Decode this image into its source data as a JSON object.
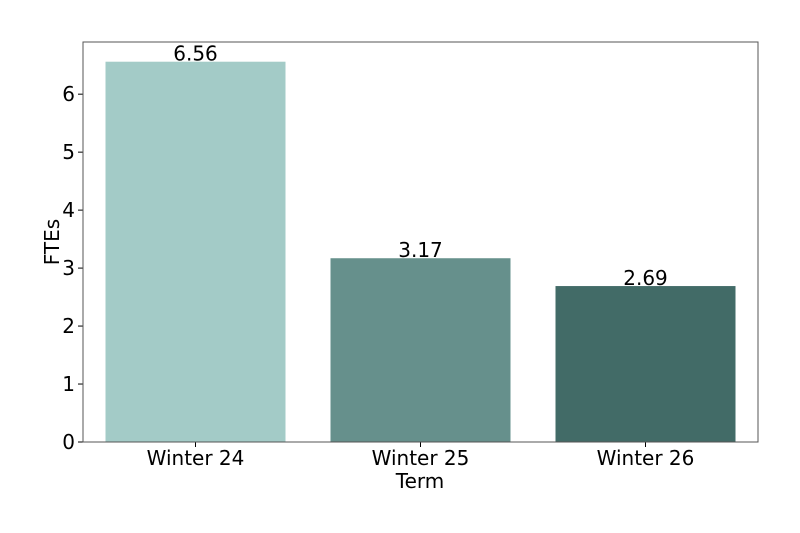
{
  "chart_data": {
    "type": "bar",
    "categories": [
      "Winter 24",
      "Winter 25",
      "Winter 26"
    ],
    "values": [
      6.56,
      3.17,
      2.69
    ],
    "colors": [
      "#a3cbc7",
      "#66908c",
      "#426b67"
    ],
    "x_label": "Term",
    "y_label": "FTEs",
    "ylim": [
      0,
      6.9
    ],
    "yticks": [
      0,
      1,
      2,
      3,
      4,
      5,
      6
    ],
    "grid": false
  }
}
